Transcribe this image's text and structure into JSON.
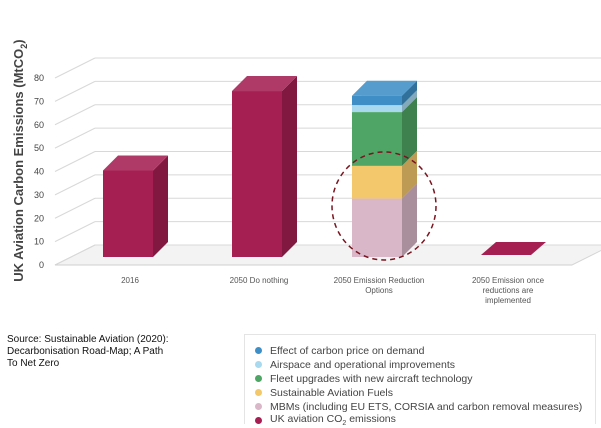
{
  "chart_data": {
    "type": "bar",
    "stacked": true,
    "three_d": true,
    "ylabel": "UK Aviation Carbon Emissions (MtCO2)",
    "ylabel_main": "UK Aviation Carbon Emissions (MtCO",
    "ylabel_sub": "2",
    "ylabel_close": ")",
    "ylim": [
      0,
      80
    ],
    "yticks": [
      "0",
      "10",
      "20",
      "30",
      "40",
      "50",
      "60",
      "70",
      "80"
    ],
    "categories": [
      [
        "2016"
      ],
      [
        "2050 Do nothing"
      ],
      [
        "2050 Emission Reduction",
        "Options"
      ],
      [
        "2050 Emission once",
        "reductions are",
        "implemented"
      ]
    ],
    "series": [
      {
        "name": "UK aviation CO2 emissions",
        "color": "#a51f52",
        "values": [
          37,
          71,
          0,
          0
        ]
      },
      {
        "name": "MBMs (including EU ETS, CORSIA and carbon removal measures)",
        "color": "#d9b6c8",
        "values": [
          0,
          0,
          25,
          0
        ]
      },
      {
        "name": "Sustainable Aviation Fuels",
        "color": "#f3c76c",
        "values": [
          0,
          0,
          14,
          0
        ]
      },
      {
        "name": "Fleet upgrades with new aircraft technology",
        "color": "#4fa565",
        "values": [
          0,
          0,
          23,
          0
        ]
      },
      {
        "name": "Airspace and operational improvements",
        "color": "#a8d9ee",
        "values": [
          0,
          0,
          3,
          0
        ]
      },
      {
        "name": "Effect of carbon price on demand",
        "color": "#3f8fc6",
        "values": [
          0,
          0,
          4,
          0
        ]
      }
    ],
    "annotation": "dashed circle highlighting MBMs and Sustainable Aviation Fuels",
    "grid": true
  },
  "source": "Source: Sustainable Aviation (2020): Decarbonisation Road-Map; A Path To Net Zero",
  "legend": {
    "items": [
      {
        "label": "Effect of carbon price on demand",
        "color": "#3f8fc6"
      },
      {
        "label": "Airspace and operational improvements",
        "color": "#a8d9ee"
      },
      {
        "label": "Fleet upgrades with new aircraft technology",
        "color": "#4fa565"
      },
      {
        "label": "Sustainable Aviation Fuels",
        "color": "#f3c76c"
      },
      {
        "label": "MBMs (including EU ETS, CORSIA and carbon removal measures)",
        "color": "#d9b6c8"
      },
      {
        "label_main": "UK aviation CO",
        "label_sub": "2",
        "label_after": " emissions",
        "color": "#a51f52"
      }
    ]
  }
}
